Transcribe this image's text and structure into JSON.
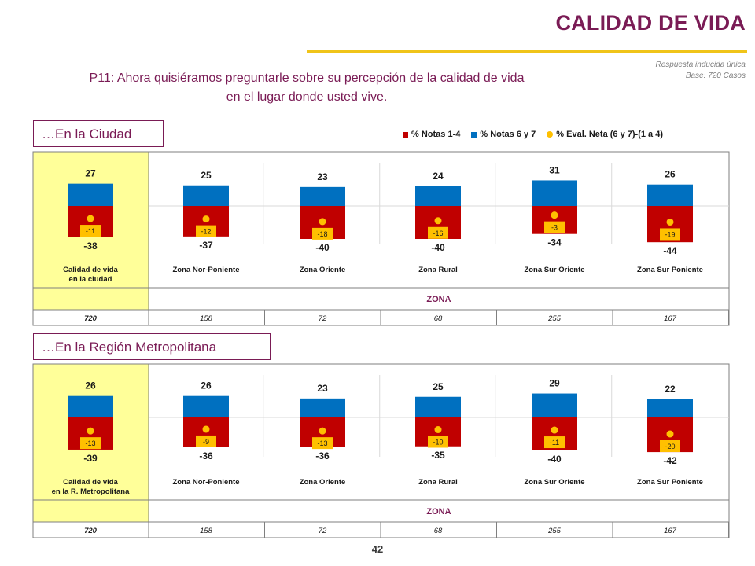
{
  "header": {
    "title": "CALIDAD DE VIDA",
    "meta_line1": "Respuesta inducida única",
    "meta_line2": "Base: 720 Casos"
  },
  "question": {
    "line1": "P11: Ahora quisiéramos preguntarle sobre su percepción de la calidad de vida",
    "line2": "en el lugar donde usted vive."
  },
  "legend": {
    "neg_label": "% Notas 1-4",
    "pos_label": "% Notas 6 y 7",
    "net_label": "% Eval. Neta (6 y 7)-(1 a 4)"
  },
  "colors": {
    "negative": "#c00000",
    "positive": "#0070c0",
    "net": "#ffc000",
    "highlight": "#ffff99",
    "accent": "#7a1b55",
    "title_rule": "#f0c419"
  },
  "page_number": "42",
  "chart_data": [
    {
      "type": "bar",
      "section_label": "…En la Ciudad",
      "first_label_lines": [
        "Calidad de vida",
        "en la ciudad"
      ],
      "categories": [
        "Calidad de vida en la ciudad",
        "Zona Nor-Poniente",
        "Zona Oriente",
        "Zona Rural",
        "Zona Sur Oriente",
        "Zona Sur Poniente"
      ],
      "series": [
        {
          "name": "% Notas 1-4",
          "values": [
            -38,
            -37,
            -40,
            -40,
            -34,
            -44
          ]
        },
        {
          "name": "% Notas 6 y 7",
          "values": [
            27,
            25,
            23,
            24,
            31,
            26
          ]
        },
        {
          "name": "% Eval. Neta (6 y 7)-(1 a 4)",
          "values": [
            -11,
            -12,
            -18,
            -16,
            -3,
            -19
          ]
        }
      ],
      "zone_label": "ZONA",
      "bases": [
        "720",
        "158",
        "72",
        "68",
        "255",
        "167"
      ]
    },
    {
      "type": "bar",
      "section_label": "…En la Región Metropolitana",
      "first_label_lines": [
        "Calidad de vida",
        "en la R. Metropolitana"
      ],
      "categories": [
        "Calidad de vida en la R. Metropolitana",
        "Zona Nor-Poniente",
        "Zona Oriente",
        "Zona Rural",
        "Zona Sur Oriente",
        "Zona Sur Poniente"
      ],
      "series": [
        {
          "name": "% Notas 1-4",
          "values": [
            -39,
            -36,
            -36,
            -35,
            -40,
            -42
          ]
        },
        {
          "name": "% Notas 6 y 7",
          "values": [
            26,
            26,
            23,
            25,
            29,
            22
          ]
        },
        {
          "name": "% Eval. Neta (6 y 7)-(1 a 4)",
          "values": [
            -13,
            -9,
            -13,
            -10,
            -11,
            -20
          ]
        }
      ],
      "zone_label": "ZONA",
      "bases": [
        "720",
        "158",
        "72",
        "68",
        "255",
        "167"
      ]
    }
  ]
}
